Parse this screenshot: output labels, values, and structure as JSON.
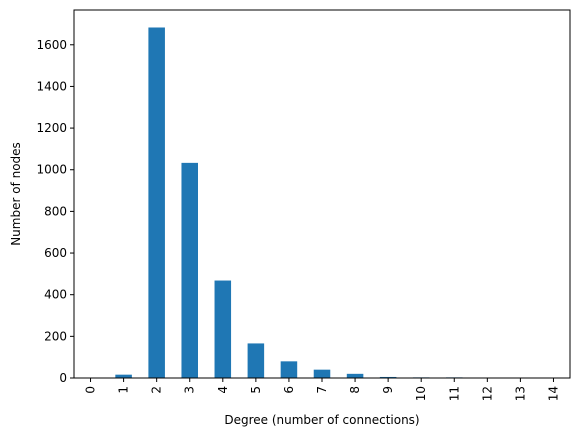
{
  "chart_data": {
    "type": "bar",
    "xlabel": "Degree (number of connections)",
    "ylabel": "Number of nodes",
    "categories": [
      "0",
      "1",
      "2",
      "3",
      "4",
      "5",
      "6",
      "7",
      "8",
      "9",
      "10",
      "11",
      "12",
      "13",
      "14"
    ],
    "values": [
      0,
      16,
      1683,
      1033,
      468,
      166,
      80,
      40,
      20,
      5,
      3,
      3,
      1,
      1,
      1
    ],
    "ylim": [
      0,
      1767
    ],
    "yticks": [
      0,
      200,
      400,
      600,
      800,
      1000,
      1200,
      1400,
      1600
    ],
    "bar_color": "#1f77b4",
    "grid": false
  }
}
